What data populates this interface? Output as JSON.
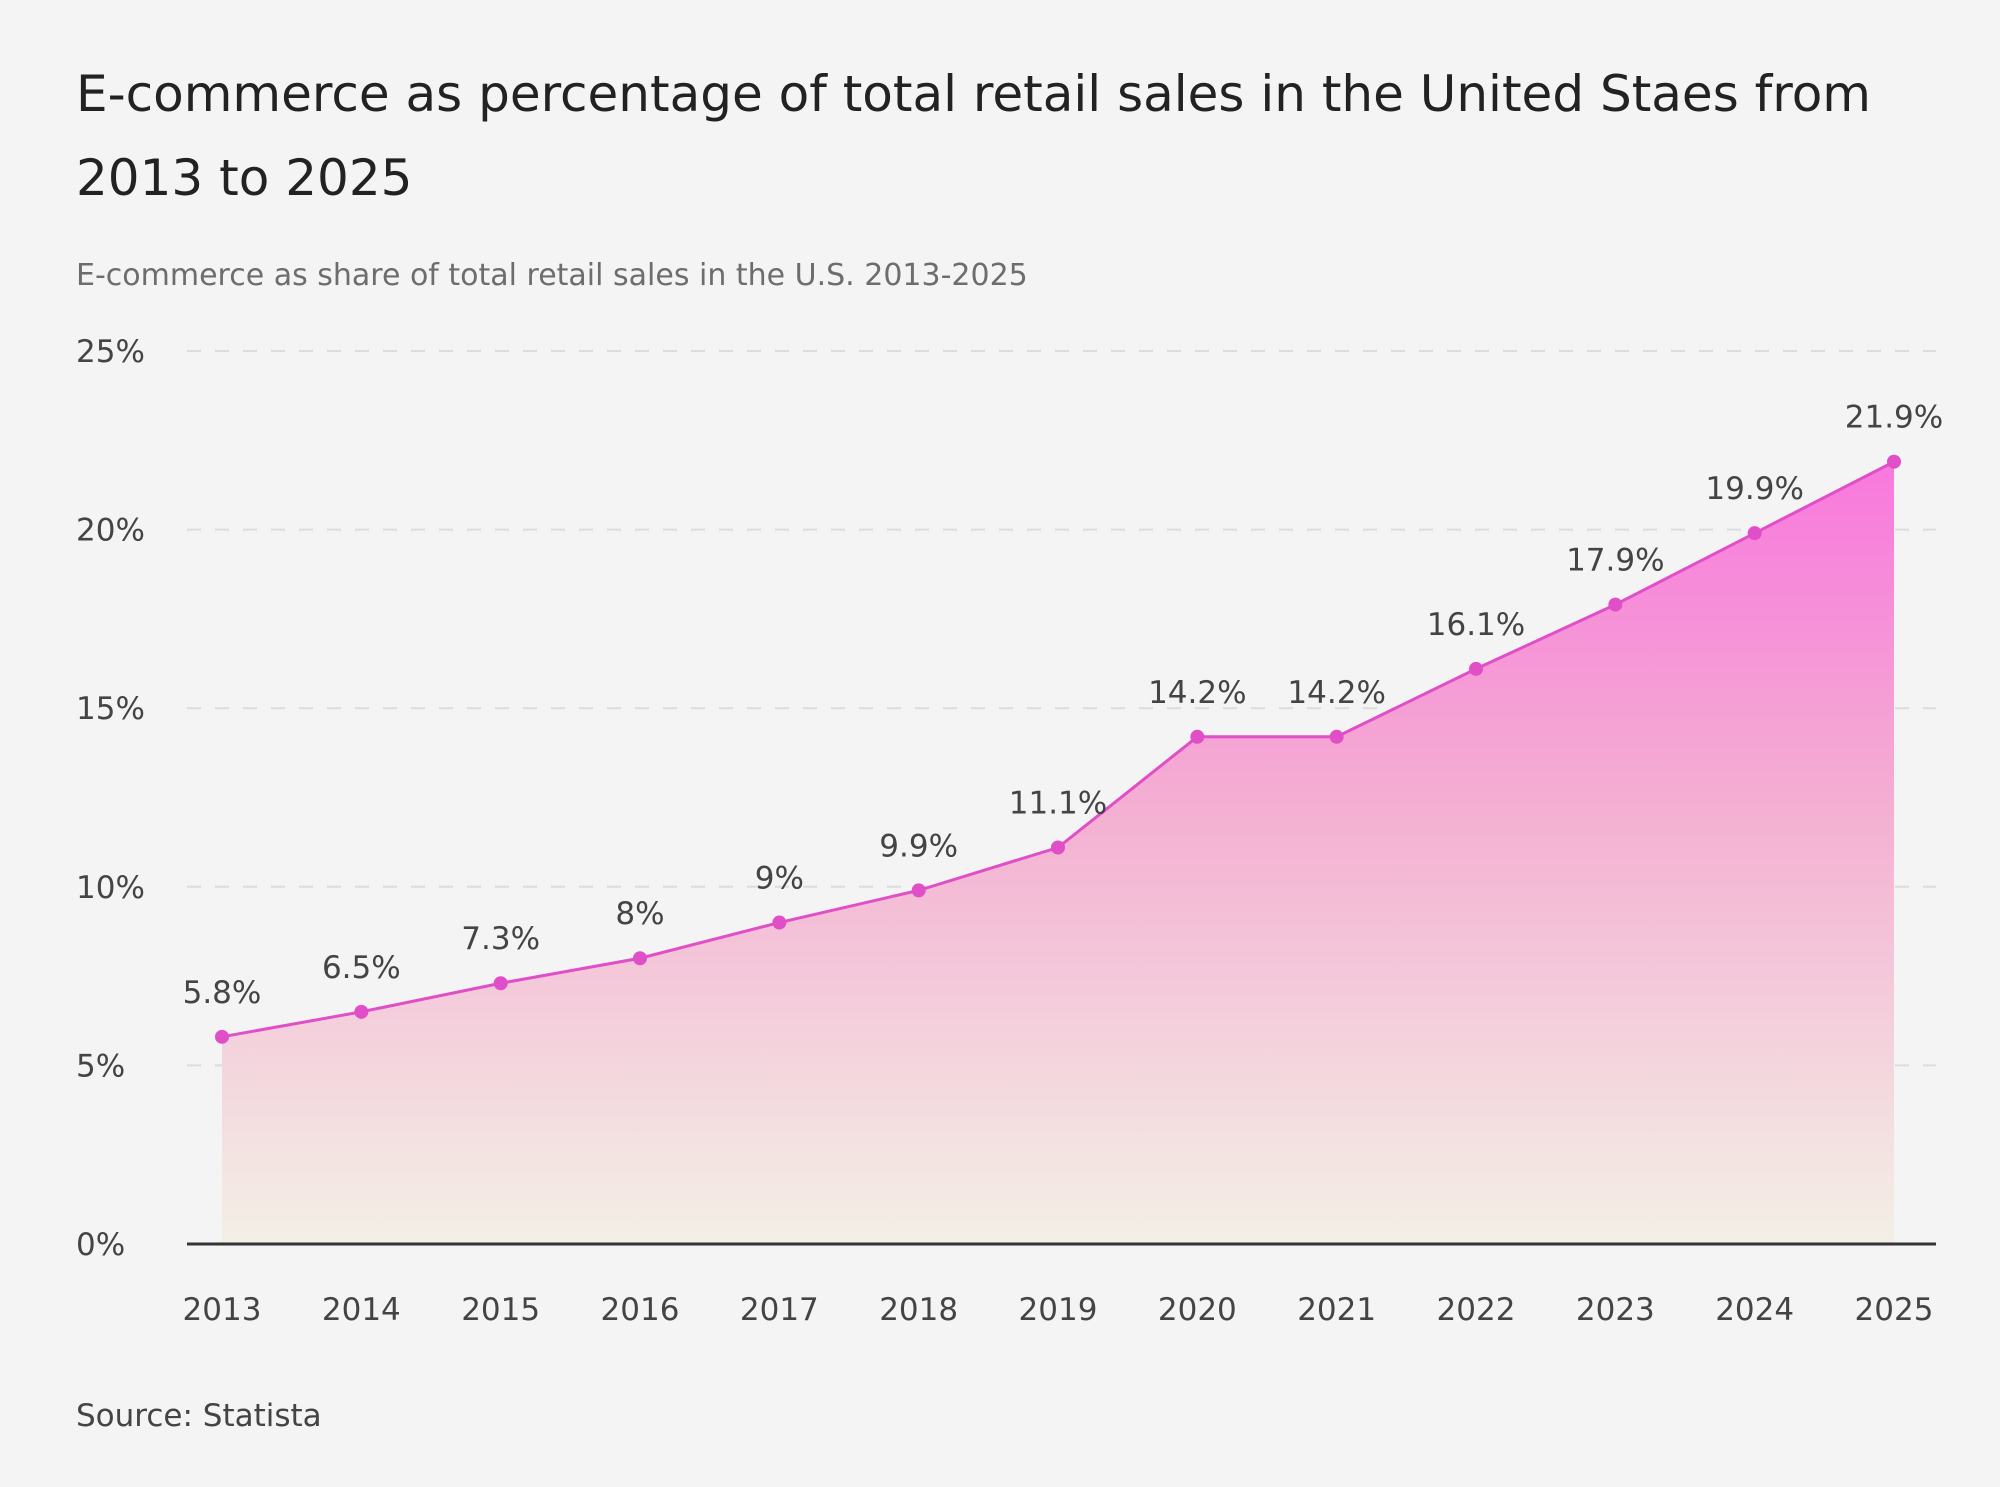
{
  "chart_data": {
    "type": "area",
    "title": "E-commerce as percentage of total retail sales in the United Staes from 2013 to 2025",
    "subtitle": "E-commerce as share of total retail sales in the U.S. 2013-2025",
    "source": "Source: Statista",
    "xlabel": "",
    "ylabel": "",
    "categories": [
      "2013",
      "2014",
      "2015",
      "2016",
      "2017",
      "2018",
      "2019",
      "2020",
      "2021",
      "2022",
      "2023",
      "2024",
      "2025"
    ],
    "values": [
      5.8,
      6.5,
      7.3,
      8,
      9,
      9.9,
      11.1,
      14.2,
      14.2,
      16.1,
      17.9,
      19.9,
      21.9
    ],
    "data_labels": [
      "5.8%",
      "6.5%",
      "7.3%",
      "8%",
      "9%",
      "9.9%",
      "11.1%",
      "14.2%",
      "14.2%",
      "16.1%",
      "17.9%",
      "19.9%",
      "21.9%"
    ],
    "yticks": [
      0,
      5,
      10,
      15,
      20,
      25
    ],
    "ytick_labels": [
      "0%",
      "5%",
      "10%",
      "15%",
      "20%",
      "25%"
    ],
    "ylim": [
      0,
      25
    ],
    "grid": true,
    "colors": {
      "line": "#e04fc8",
      "fill_top": "#f878dd",
      "fill_bottom": "#f3f0e6",
      "grid": "#dcdcdc",
      "axis": "#333333"
    }
  }
}
